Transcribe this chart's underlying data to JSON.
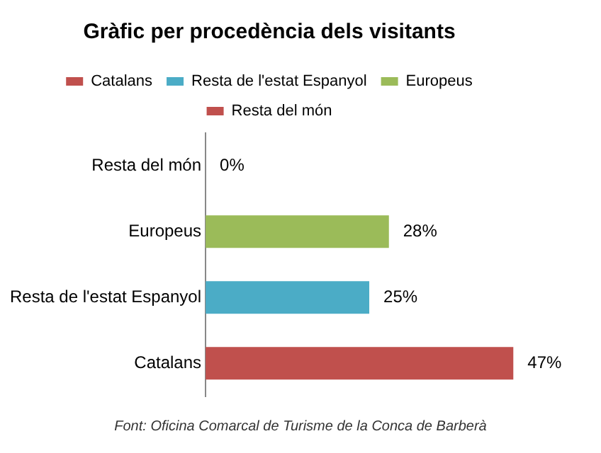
{
  "chart_data": {
    "type": "bar",
    "orientation": "horizontal",
    "title": "Gràfic per procedència dels visitants",
    "categories": [
      "Resta del món",
      "Europeus",
      "Resta de l'estat Espanyol",
      "Catalans"
    ],
    "series": [
      {
        "name": "Catalans",
        "color": "#c0504d",
        "values": [
          null,
          null,
          null,
          47
        ],
        "value_labels": [
          null,
          null,
          null,
          "47%"
        ]
      },
      {
        "name": "Resta de l'estat Espanyol",
        "color": "#4bacc6",
        "values": [
          null,
          null,
          25,
          null
        ],
        "value_labels": [
          null,
          null,
          "25%",
          null
        ]
      },
      {
        "name": "Europeus",
        "color": "#9bbb59",
        "values": [
          null,
          28,
          null,
          null
        ],
        "value_labels": [
          null,
          "28%",
          null,
          null
        ]
      },
      {
        "name": "Resta del món",
        "color": "#c0504d",
        "values": [
          0,
          null,
          null,
          null
        ],
        "value_labels": [
          "0%",
          null,
          null,
          null
        ]
      }
    ],
    "legend": "top",
    "annotations": [
      "Font: Oficina Comarcal de Turisme de la Conca de Barberà"
    ]
  }
}
